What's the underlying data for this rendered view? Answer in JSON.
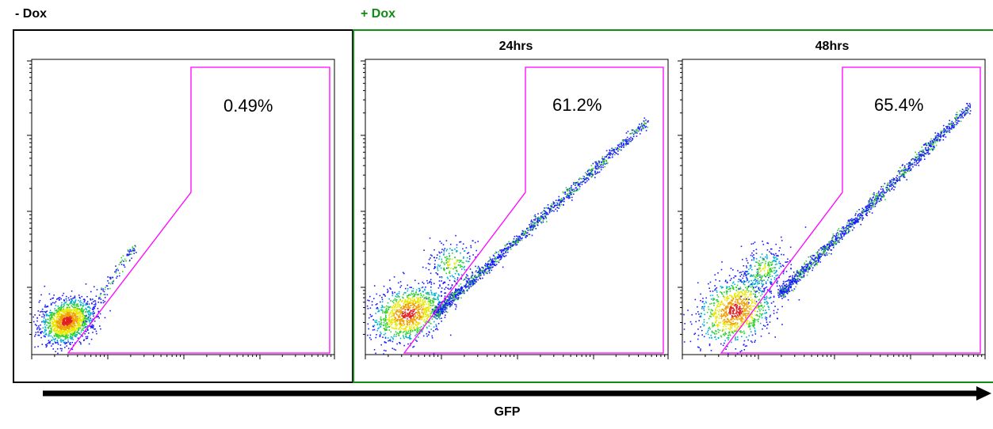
{
  "groups": {
    "minus_dox": {
      "label": "- Dox",
      "color": "#000000"
    },
    "plus_dox": {
      "label": "+ Dox",
      "color": "#138a13"
    }
  },
  "x_axis_label": "GFP",
  "gate_color": "#ff00ff",
  "chart_data": [
    {
      "type": "scatter",
      "group": "- Dox",
      "title": "",
      "gate_percent": "0.49%",
      "xscale": "log",
      "yscale": "log"
    },
    {
      "type": "scatter",
      "group": "+ Dox",
      "title": "24hrs",
      "gate_percent": "61.2%",
      "xscale": "log",
      "yscale": "log"
    },
    {
      "type": "scatter",
      "group": "+ Dox",
      "title": "48hrs",
      "gate_percent": "65.4%",
      "xscale": "log",
      "yscale": "log"
    }
  ]
}
